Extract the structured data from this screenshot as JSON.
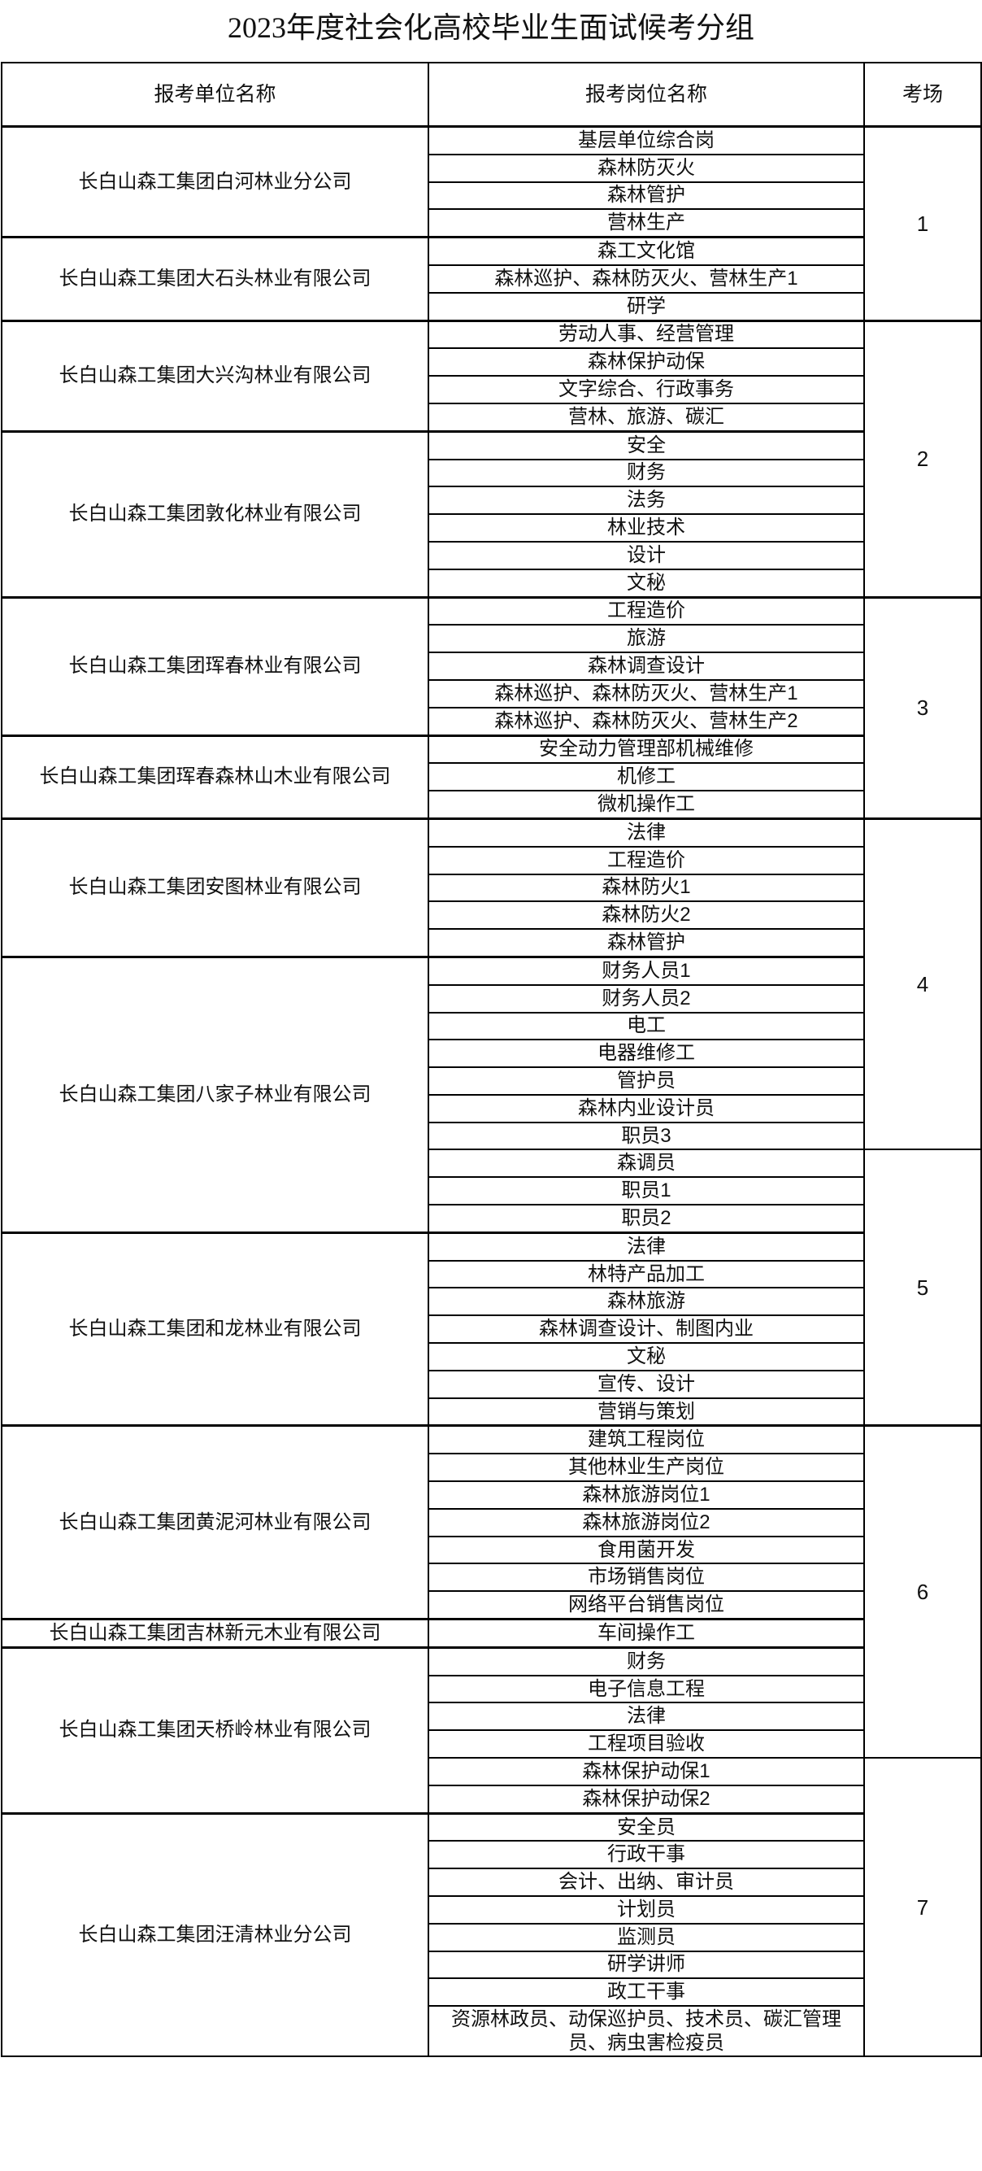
{
  "title": "2023年度社会化高校毕业生面试候考分组",
  "headers": {
    "unit": "报考单位名称",
    "position": "报考岗位名称",
    "room": "考场"
  },
  "units": [
    {
      "name": "长白山森工集团白河林业分公司",
      "positions": [
        "基层单位综合岗",
        "森林防灭火",
        "森林管护",
        "营林生产"
      ]
    },
    {
      "name": "长白山森工集团大石头林业有限公司",
      "positions": [
        "森工文化馆",
        "森林巡护、森林防灭火、营林生产1",
        "研学"
      ]
    },
    {
      "name": "长白山森工集团大兴沟林业有限公司",
      "positions": [
        "劳动人事、经营管理",
        "森林保护动保",
        "文字综合、行政事务",
        "营林、旅游、碳汇"
      ]
    },
    {
      "name": "长白山森工集团敦化林业有限公司",
      "positions": [
        "安全",
        "财务",
        "法务",
        "林业技术",
        "设计",
        "文秘"
      ]
    },
    {
      "name": "长白山森工集团珲春林业有限公司",
      "positions": [
        "工程造价",
        "旅游",
        "森林调查设计",
        "森林巡护、森林防灭火、营林生产1",
        "森林巡护、森林防灭火、营林生产2"
      ]
    },
    {
      "name": "长白山森工集团珲春森林山木业有限公司",
      "positions": [
        "安全动力管理部机械维修",
        "机修工",
        "微机操作工"
      ]
    },
    {
      "name": "长白山森工集团安图林业有限公司",
      "positions": [
        "法律",
        "工程造价",
        "森林防火1",
        "森林防火2",
        "森林管护"
      ]
    },
    {
      "name": "长白山森工集团八家子林业有限公司",
      "positions": [
        "财务人员1",
        "财务人员2",
        "电工",
        "电器维修工",
        "管护员",
        "森林内业设计员",
        "职员3",
        "森调员",
        "职员1",
        "职员2"
      ]
    },
    {
      "name": "长白山森工集团和龙林业有限公司",
      "positions": [
        "法律",
        "林特产品加工",
        "森林旅游",
        "森林调查设计、制图内业",
        "文秘",
        "宣传、设计",
        "营销与策划"
      ]
    },
    {
      "name": "长白山森工集团黄泥河林业有限公司",
      "positions": [
        "建筑工程岗位",
        "其他林业生产岗位",
        "森林旅游岗位1",
        "森林旅游岗位2",
        "食用菌开发",
        "市场销售岗位",
        "网络平台销售岗位"
      ]
    },
    {
      "name": "长白山森工集团吉林新元木业有限公司",
      "positions": [
        "车间操作工"
      ]
    },
    {
      "name": "长白山森工集团天桥岭林业有限公司",
      "positions": [
        "财务",
        "电子信息工程",
        "法律",
        "工程项目验收",
        "森林保护动保1",
        "森林保护动保2"
      ]
    },
    {
      "name": "长白山森工集团汪清林业分公司",
      "positions": [
        "安全员",
        "行政干事",
        "会计、出纳、审计员",
        "计划员",
        "监测员",
        "研学讲师",
        "政工干事",
        "资源林政员、动保巡护员、技术员、碳汇管理员、病虫害检疫员"
      ]
    }
  ],
  "rooms": [
    {
      "label": "1",
      "row_count": 7
    },
    {
      "label": "2",
      "row_count": 10
    },
    {
      "label": "3",
      "row_count": 8
    },
    {
      "label": "4",
      "row_count": 12
    },
    {
      "label": "5",
      "row_count": 10
    },
    {
      "label": "6",
      "row_count": 12
    },
    {
      "label": "7",
      "row_count": 10
    }
  ]
}
